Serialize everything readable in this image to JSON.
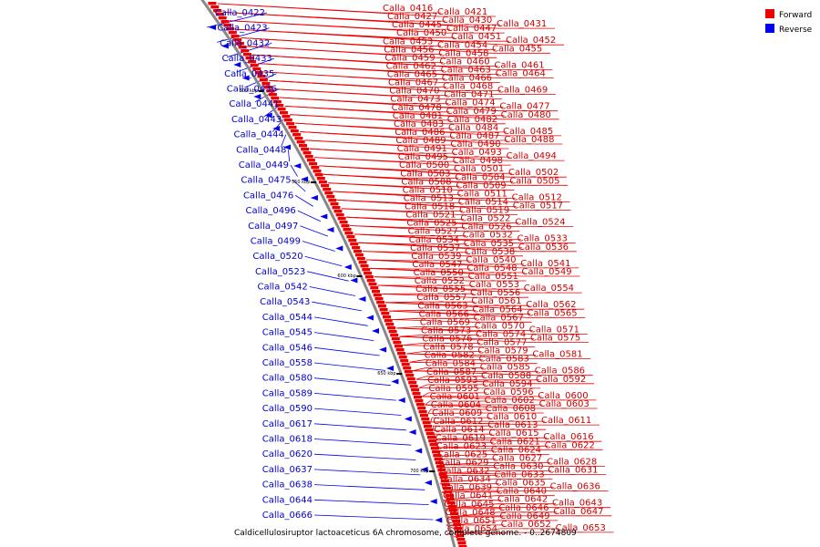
{
  "caption": "Caldicellulosiruptor lactoaceticus 6A chromosome, complete genome. - 0..2674809",
  "legend": [
    {
      "label": "Forward",
      "color": "#ee0000"
    },
    {
      "label": "Reverse",
      "color": "#0000ee"
    }
  ],
  "scale_marks": [
    "500 kbp",
    "550 kbp",
    "600 kbp",
    "650 kbp",
    "700 kbp"
  ],
  "forward_genes": [
    "Calla_0416",
    "Calla_0421",
    "Calla_0427",
    "Calla_0430",
    "Calla_0431",
    "Calla_0445",
    "Calla_0447",
    "Calla_0450",
    "Calla_0451",
    "Calla_0452",
    "Calla_0453",
    "Calla_0454",
    "Calla_0455",
    "Calla_0456",
    "Calla_0458",
    "Calla_0459",
    "Calla_0460",
    "Calla_0461",
    "Calla_0462",
    "Calla_0463",
    "Calla_0464",
    "Calla_0465",
    "Calla_0466",
    "Calla_0467",
    "Calla_0468",
    "Calla_0469",
    "Calla_0470",
    "Calla_0471",
    "Calla_0473",
    "Calla_0474",
    "Calla_0477",
    "Calla_0478",
    "Calla_0479",
    "Calla_0480",
    "Calla_0481",
    "Calla_0482",
    "Calla_0483",
    "Calla_0484",
    "Calla_0485",
    "Calla_0486",
    "Calla_0487",
    "Calla_0488",
    "Calla_0489",
    "Calla_0490",
    "Calla_0491",
    "Calla_0493",
    "Calla_0494",
    "Calla_0495",
    "Calla_0498",
    "Calla_0500",
    "Calla_0501",
    "Calla_0502",
    "Calla_0503",
    "Calla_0504",
    "Calla_0505",
    "Calla_0508",
    "Calla_0509",
    "Calla_0510",
    "Calla_0511",
    "Calla_0512",
    "Calla_0513",
    "Calla_0514",
    "Calla_0517",
    "Calla_0518",
    "Calla_0519",
    "Calla_0521",
    "Calla_0522",
    "Calla_0524",
    "Calla_0525",
    "Calla_0526",
    "Calla_0527",
    "Calla_0532",
    "Calla_0533",
    "Calla_0534",
    "Calla_0535",
    "Calla_0536",
    "Calla_0537",
    "Calla_0538",
    "Calla_0539",
    "Calla_0540",
    "Calla_0541",
    "Calla_0547",
    "Calla_0548",
    "Calla_0549",
    "Calla_0550",
    "Calla_0551",
    "Calla_0552",
    "Calla_0553",
    "Calla_0554",
    "Calla_0555",
    "Calla_0556",
    "Calla_0557",
    "Calla_0561",
    "Calla_0562",
    "Calla_0563",
    "Calla_0564",
    "Calla_0565",
    "Calla_0566",
    "Calla_0567",
    "Calla_0569",
    "Calla_0570",
    "Calla_0571",
    "Calla_0573",
    "Calla_0574",
    "Calla_0575",
    "Calla_0576",
    "Calla_0577",
    "Calla_0578",
    "Calla_0579",
    "Calla_0581",
    "Calla_0582",
    "Calla_0583",
    "Calla_0584",
    "Calla_0585",
    "Calla_0586",
    "Calla_0587",
    "Calla_0588",
    "Calla_0592",
    "Calla_0593",
    "Calla_0594",
    "Calla_0595",
    "Calla_0596",
    "Calla_0600",
    "Calla_0601",
    "Calla_0602",
    "Calla_0603",
    "Calla_0604",
    "Calla_0608",
    "Calla_0609",
    "Calla_0610",
    "Calla_0611",
    "Calla_0612",
    "Calla_0613",
    "Calla_0614",
    "Calla_0615",
    "Calla_0616",
    "Calla_0619",
    "Calla_0621",
    "Calla_0622",
    "Calla_0623",
    "Calla_0624",
    "Calla_0625",
    "Calla_0627",
    "Calla_0628",
    "Calla_0629",
    "Calla_0630",
    "Calla_0631",
    "Calla_0632",
    "Calla_0633",
    "Calla_0634",
    "Calla_0635",
    "Calla_0636",
    "Calla_0639",
    "Calla_0640",
    "Calla_0641",
    "Calla_0642",
    "Calla_0643",
    "Calla_0645",
    "Calla_0646",
    "Calla_0647",
    "Calla_0648",
    "Calla_0649",
    "Calla_0651",
    "Calla_0652",
    "Calla_0653",
    "Calla_0654"
  ],
  "reverse_genes": [
    "Calla_0422",
    "Calla_0423",
    "Calla_0432",
    "Calla_0433",
    "Calla_0435",
    "Calla_0436",
    "Calla_0441",
    "Calla_0443",
    "Calla_0444",
    "Calla_0448",
    "Calla_0449",
    "Calla_0475",
    "Calla_0476",
    "Calla_0496",
    "Calla_0497",
    "Calla_0499",
    "Calla_0520",
    "Calla_0523",
    "Calla_0542",
    "Calla_0543",
    "Calla_0544",
    "Calla_0545",
    "Calla_0546",
    "Calla_0558",
    "Calla_0580",
    "Calla_0589",
    "Calla_0590",
    "Calla_0617",
    "Calla_0618",
    "Calla_0620",
    "Calla_0637",
    "Calla_0638",
    "Calla_0644",
    "Calla_0666"
  ]
}
